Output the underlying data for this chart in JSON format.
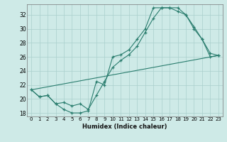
{
  "xlabel": "Humidex (Indice chaleur)",
  "ylabel": "",
  "xlim": [
    -0.5,
    23.5
  ],
  "ylim": [
    17.5,
    33.5
  ],
  "yticks": [
    18,
    20,
    22,
    24,
    26,
    28,
    30,
    32
  ],
  "xticks": [
    0,
    1,
    2,
    3,
    4,
    5,
    6,
    7,
    8,
    9,
    10,
    11,
    12,
    13,
    14,
    15,
    16,
    17,
    18,
    19,
    20,
    21,
    22,
    23
  ],
  "bg_color": "#ceeae7",
  "grid_color": "#aacfcc",
  "line_color": "#2a7d6e",
  "line1_x": [
    0,
    1,
    2,
    3,
    4,
    5,
    6,
    7,
    8,
    9,
    10,
    11,
    12,
    13,
    14,
    15,
    16,
    17,
    18,
    19,
    20,
    21,
    22,
    23
  ],
  "line1_y": [
    21.3,
    20.3,
    20.5,
    19.3,
    18.5,
    18.0,
    18.0,
    18.3,
    22.5,
    22.0,
    26.0,
    26.3,
    27.0,
    28.5,
    30.0,
    33.0,
    33.0,
    33.0,
    32.5,
    32.0,
    30.3,
    28.5,
    26.0,
    26.2
  ],
  "line2_x": [
    0,
    1,
    2,
    3,
    4,
    5,
    6,
    7,
    8,
    9,
    10,
    11,
    12,
    13,
    14,
    15,
    16,
    17,
    18,
    19,
    20,
    21,
    22,
    23
  ],
  "line2_y": [
    21.3,
    20.3,
    20.5,
    19.3,
    19.5,
    19.0,
    19.3,
    18.5,
    20.5,
    22.5,
    24.5,
    25.5,
    26.3,
    27.5,
    29.5,
    31.5,
    33.0,
    33.0,
    33.0,
    32.0,
    30.0,
    28.5,
    26.5,
    26.2
  ],
  "line3_x": [
    0,
    23
  ],
  "line3_y": [
    21.3,
    26.2
  ]
}
